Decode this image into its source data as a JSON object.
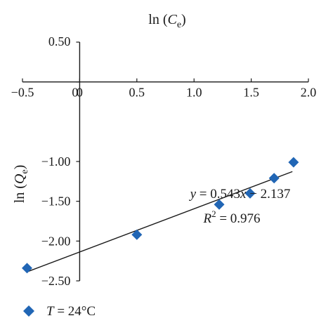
{
  "chart_data": {
    "type": "scatter",
    "x_axis": {
      "title_prefix": "ln (",
      "title_var": "C",
      "title_sub": "e",
      "title_suffix": ")",
      "range": [
        -0.5,
        2.0
      ],
      "ticks": [
        -0.5,
        0,
        0.5,
        1.0,
        1.5,
        2.0
      ],
      "tick_labels": [
        "−0.5",
        "0",
        "0.5",
        "1.0",
        "1.5",
        "2.0"
      ],
      "position": "top"
    },
    "y_axis": {
      "title_prefix": "ln (",
      "title_var": "Q",
      "title_sub": "e",
      "title_suffix": ")",
      "range": [
        -2.5,
        0.5
      ],
      "ticks": [
        0.5,
        0,
        -1.0,
        -1.5,
        -2.0,
        -2.5
      ],
      "tick_labels": [
        "0.50",
        "0",
        "−1.00",
        "−1.50",
        "−2.00",
        "−2.50"
      ]
    },
    "series": [
      {
        "name": "T = 24°C",
        "marker": "diamond",
        "color": "#2166b5",
        "points": [
          {
            "x": -0.46,
            "y": -2.34
          },
          {
            "x": 0.5,
            "y": -1.92
          },
          {
            "x": 1.22,
            "y": -1.54
          },
          {
            "x": 1.49,
            "y": -1.4
          },
          {
            "x": 1.7,
            "y": -1.21
          },
          {
            "x": 1.87,
            "y": -1.01
          }
        ]
      }
    ],
    "trendline": {
      "slope": 0.543,
      "intercept": -2.137,
      "x_range": [
        -0.45,
        1.86
      ]
    },
    "annotation": {
      "equation_var_y": "y",
      "equation_rest": " = 0.543",
      "equation_var_x": "x",
      "equation_tail": " − 2.137",
      "r2_label": "R",
      "r2_sup": "2",
      "r2_value": " = 0.976"
    },
    "legend": {
      "var": "T",
      "rest": " = 24°C",
      "placement": "bottom-left"
    },
    "grid": false
  }
}
